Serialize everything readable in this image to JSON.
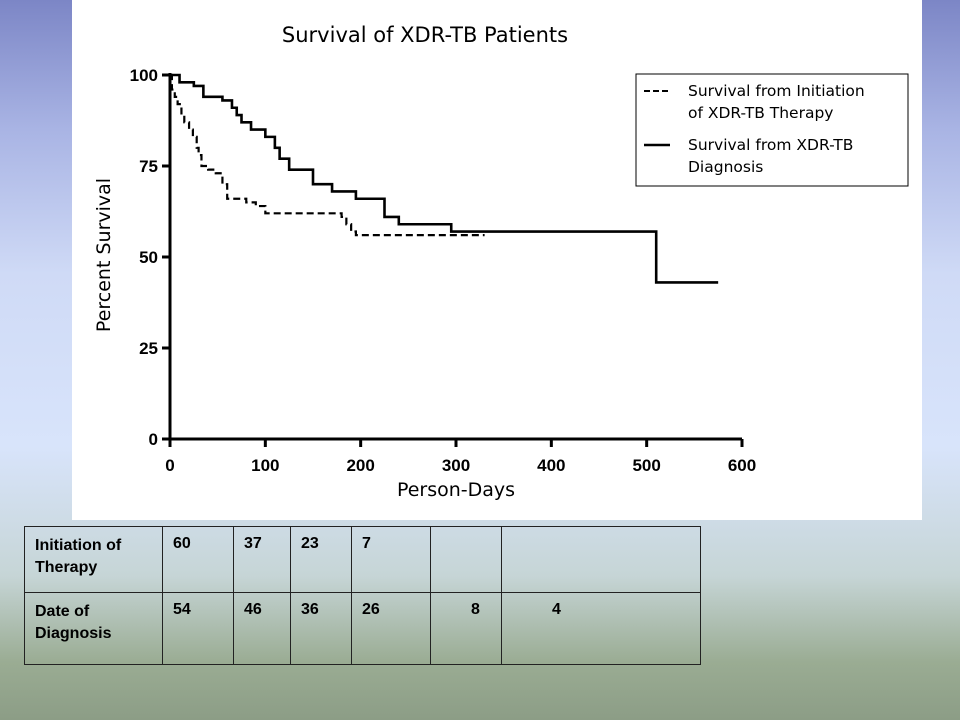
{
  "colors": {
    "background_top": "#7c86c6",
    "background_bottom": "#8c9d86",
    "panel": "#ffffff",
    "ink": "#000000"
  },
  "chart_data": {
    "type": "line",
    "title": "Survival of XDR-TB Patients",
    "xlabel": "Person-Days",
    "ylabel": "Percent Survival",
    "xlim": [
      0,
      600
    ],
    "ylim": [
      0,
      100
    ],
    "xticks": [
      0,
      100,
      200,
      300,
      400,
      500,
      600
    ],
    "yticks": [
      0,
      25,
      50,
      75,
      100
    ],
    "grid": false,
    "legend_position": "top-right",
    "series": [
      {
        "name": "Survival from Initiation of XDR-TB Therapy",
        "line_style": "dashed",
        "steps": [
          [
            0,
            100
          ],
          [
            2,
            96
          ],
          [
            5,
            94
          ],
          [
            8,
            92
          ],
          [
            12,
            89
          ],
          [
            15,
            87
          ],
          [
            20,
            85
          ],
          [
            24,
            83
          ],
          [
            28,
            80
          ],
          [
            30,
            78
          ],
          [
            33,
            75
          ],
          [
            40,
            74
          ],
          [
            48,
            73
          ],
          [
            55,
            70
          ],
          [
            60,
            66
          ],
          [
            80,
            65
          ],
          [
            90,
            64
          ],
          [
            100,
            62
          ],
          [
            180,
            61
          ],
          [
            185,
            59
          ],
          [
            190,
            57
          ],
          [
            195,
            56
          ],
          [
            330,
            56
          ]
        ]
      },
      {
        "name": "Survival from XDR-TB Diagnosis",
        "line_style": "solid",
        "steps": [
          [
            0,
            100
          ],
          [
            10,
            98
          ],
          [
            25,
            97
          ],
          [
            35,
            94
          ],
          [
            55,
            93
          ],
          [
            65,
            91
          ],
          [
            70,
            89
          ],
          [
            75,
            87
          ],
          [
            85,
            85
          ],
          [
            100,
            83
          ],
          [
            110,
            80
          ],
          [
            115,
            77
          ],
          [
            125,
            74
          ],
          [
            150,
            70
          ],
          [
            170,
            68
          ],
          [
            195,
            66
          ],
          [
            225,
            61
          ],
          [
            240,
            59
          ],
          [
            295,
            57
          ],
          [
            510,
            57
          ],
          [
            510,
            43
          ],
          [
            575,
            43
          ]
        ]
      }
    ],
    "legend": [
      {
        "line_style": "dashed",
        "label_lines": [
          "Survival from Initiation",
          "of XDR-TB Therapy"
        ]
      },
      {
        "line_style": "solid",
        "label_lines": [
          "Survival from XDR-TB",
          "Diagnosis"
        ]
      }
    ]
  },
  "table": {
    "rows": [
      {
        "label": "Initiation of Therapy",
        "values": [
          "60",
          "37",
          "23",
          "7",
          "",
          ""
        ]
      },
      {
        "label": "Date of Diagnosis",
        "values": [
          "54",
          "46",
          "36",
          "26",
          "8",
          "4"
        ]
      }
    ]
  }
}
